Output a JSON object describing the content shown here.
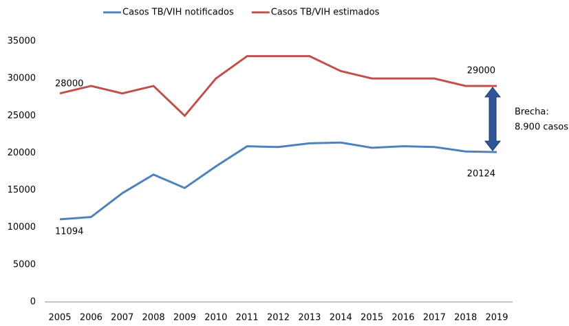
{
  "chart_data": {
    "type": "line",
    "categories": [
      "2005",
      "2006",
      "2007",
      "2008",
      "2009",
      "2010",
      "2011",
      "2012",
      "2013",
      "2014",
      "2015",
      "2016",
      "2017",
      "2018",
      "2019"
    ],
    "series": [
      {
        "name": "Casos TB/VIH notificados",
        "color": "#4f81bd",
        "values": [
          11094,
          11400,
          14600,
          17100,
          15300,
          18200,
          20900,
          20800,
          21300,
          21400,
          20700,
          20900,
          20800,
          20200,
          20124
        ],
        "value_labels": [
          "11094",
          null,
          null,
          null,
          null,
          null,
          null,
          null,
          null,
          null,
          null,
          null,
          null,
          null,
          "20124"
        ]
      },
      {
        "name": "Casos TB/VIH estimados",
        "color": "#c0504d",
        "values": [
          28000,
          29000,
          28000,
          29000,
          25000,
          30000,
          33000,
          33000,
          33000,
          31000,
          30000,
          30000,
          30000,
          29000,
          29000
        ],
        "value_labels": [
          "28000",
          null,
          null,
          null,
          null,
          null,
          null,
          null,
          null,
          null,
          null,
          null,
          null,
          null,
          "29000"
        ]
      }
    ],
    "ylim": [
      0,
      35000
    ],
    "yticks": [
      0,
      5000,
      10000,
      15000,
      20000,
      25000,
      30000,
      35000
    ],
    "grid": false,
    "legend": "top",
    "annotation": [
      "Brecha:",
      "8.900 casos"
    ]
  }
}
